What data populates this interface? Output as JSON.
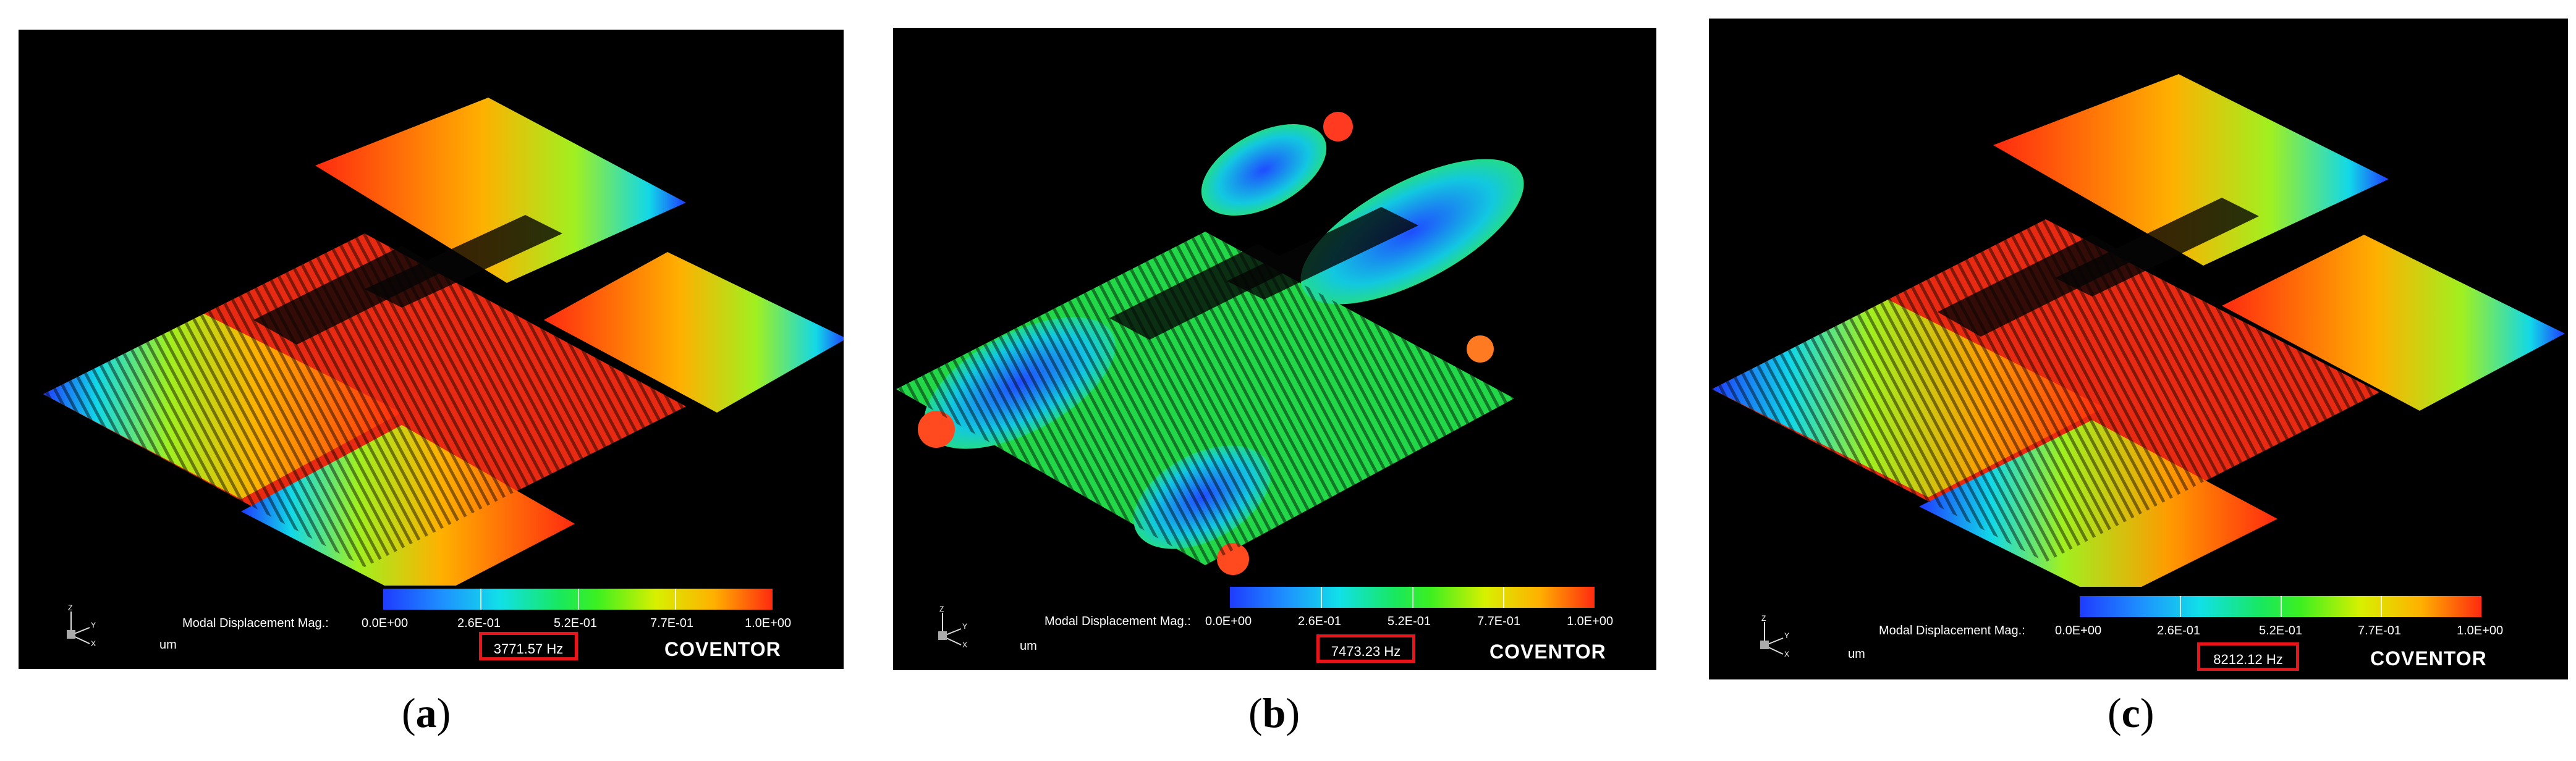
{
  "panels": [
    {
      "id": "a",
      "legend_title": "Modal Displacement Mag.:",
      "ticks": [
        "0.0E+00",
        "2.6E-01",
        "5.2E-01",
        "7.7E-01",
        "1.0E+00"
      ],
      "frequency": "3771.57 Hz",
      "unit": "um",
      "brand": "COVENTOR",
      "caption_open": "(",
      "caption_letter": "a",
      "caption_close": ")"
    },
    {
      "id": "b",
      "legend_title": "Modal Displacement Mag.:",
      "ticks": [
        "0.0E+00",
        "2.6E-01",
        "5.2E-01",
        "7.7E-01",
        "1.0E+00"
      ],
      "frequency": "7473.23 Hz",
      "unit": "um",
      "brand": "COVENTOR",
      "caption_open": "(",
      "caption_letter": "b",
      "caption_close": ")"
    },
    {
      "id": "c",
      "legend_title": "Modal Displacement Mag.:",
      "ticks": [
        "0.0E+00",
        "2.6E-01",
        "5.2E-01",
        "7.7E-01",
        "1.0E+00"
      ],
      "frequency": "8212.12 Hz",
      "unit": "um",
      "brand": "COVENTOR",
      "caption_open": "(",
      "caption_letter": "c",
      "caption_close": ")"
    }
  ],
  "axis_labels": {
    "z": "Z",
    "y": "Y",
    "x": "X"
  },
  "colors": {
    "highlight_box": "#e8141a",
    "background": "#000000"
  }
}
